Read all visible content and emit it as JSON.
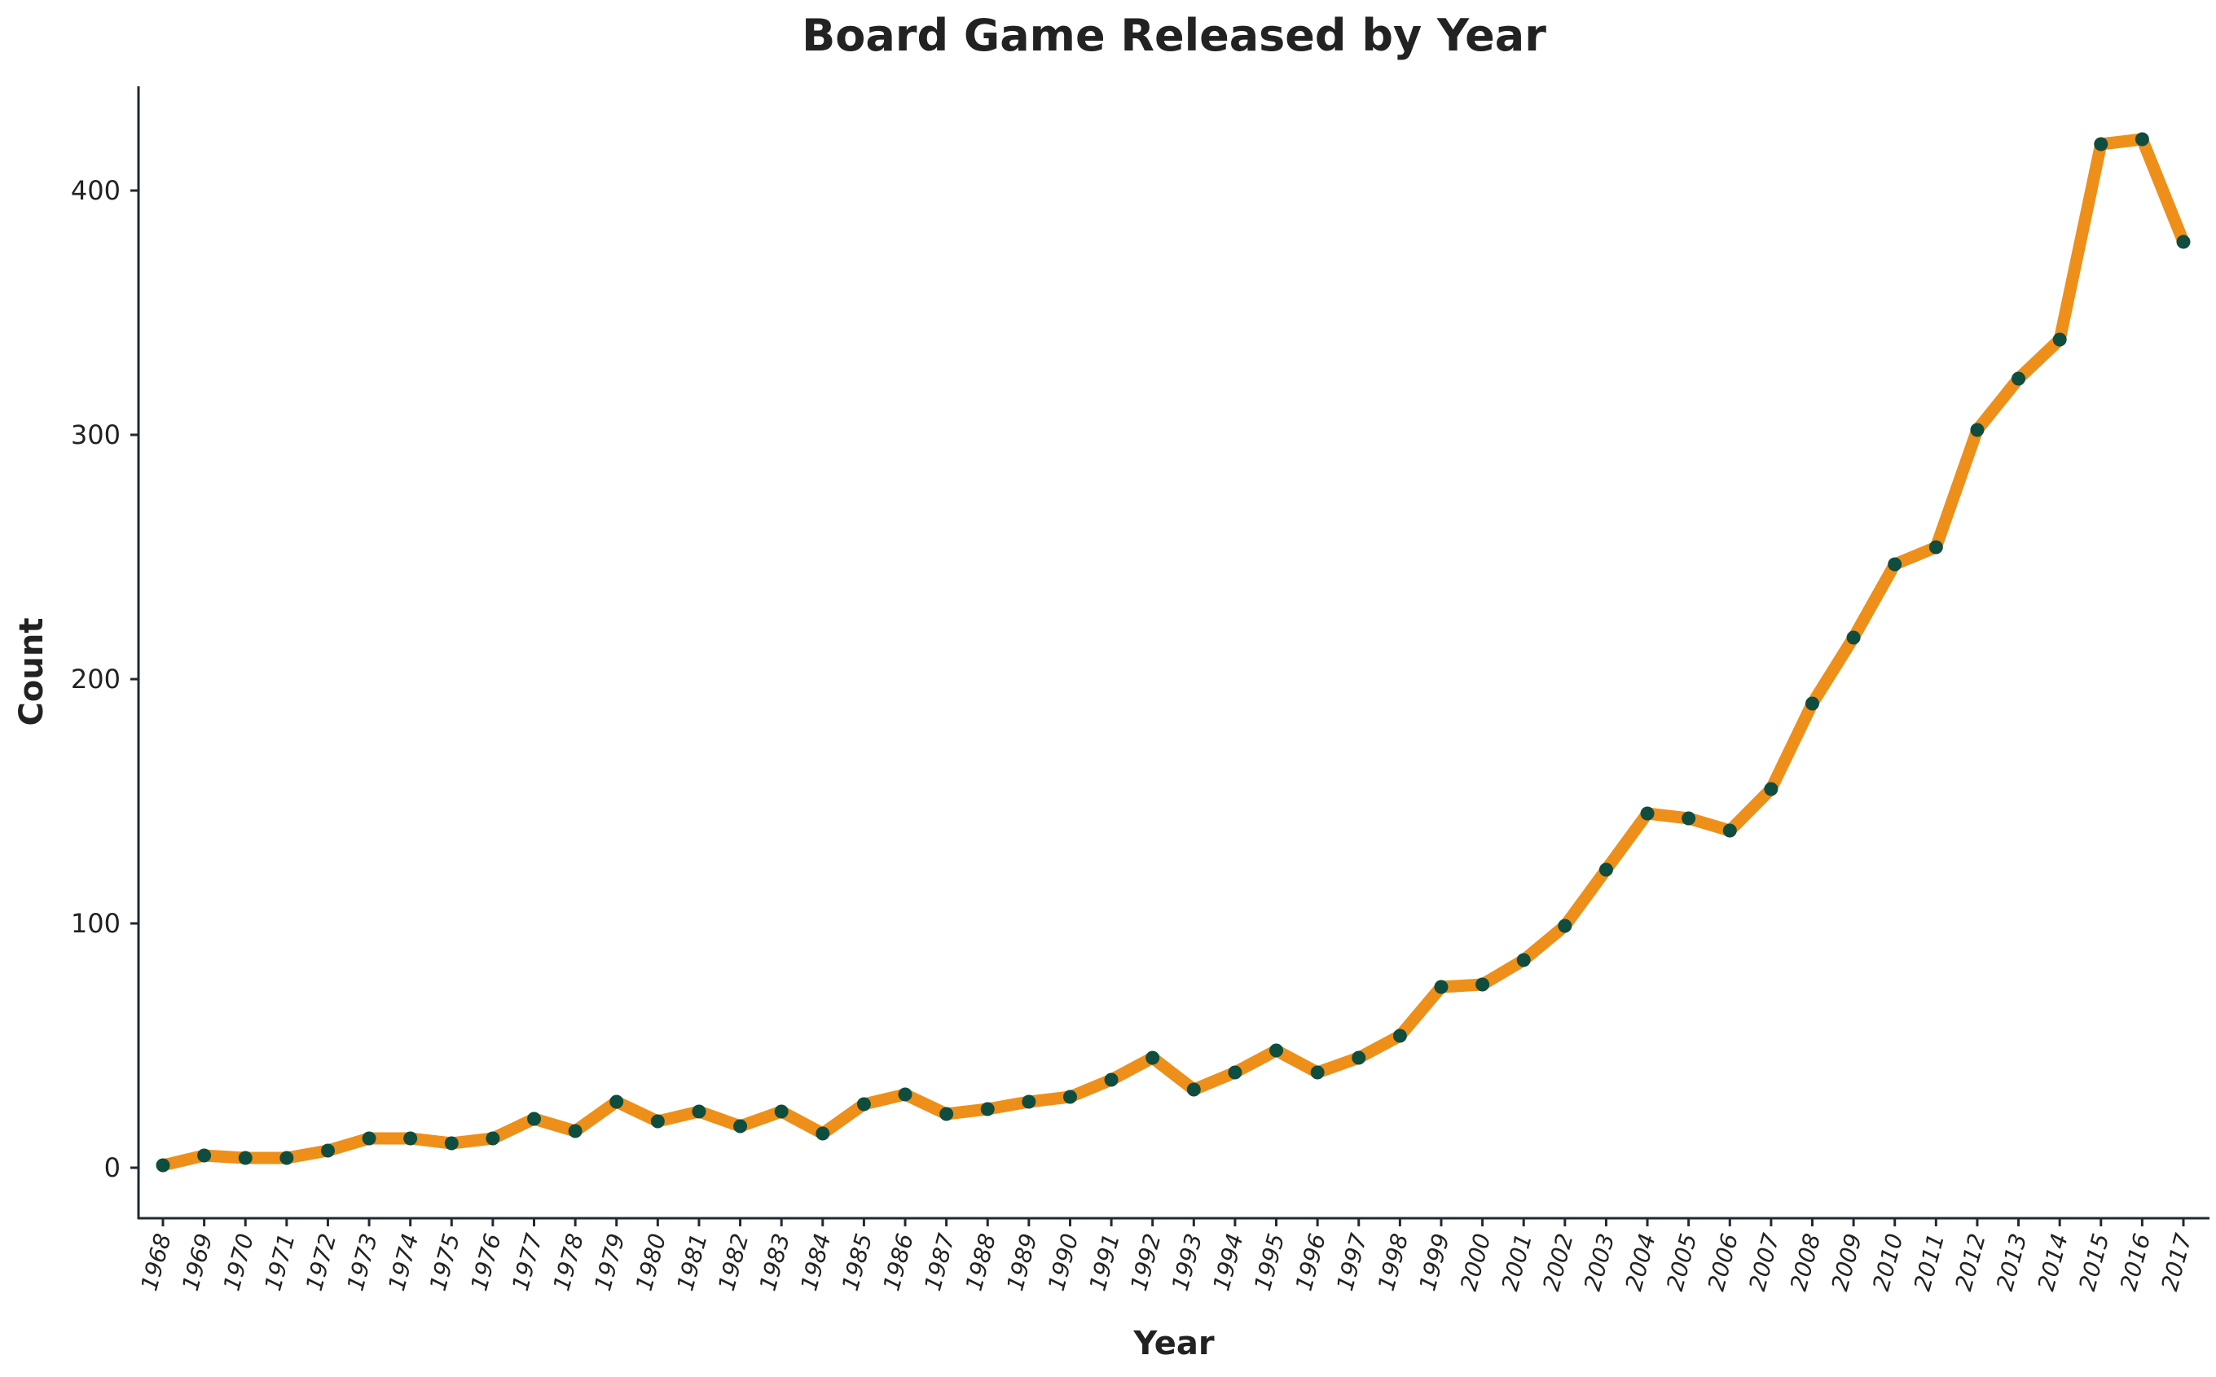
{
  "chart_data": {
    "type": "line",
    "title": "Board Game Released by Year",
    "xlabel": "Year",
    "ylabel": "Count",
    "ylim": [
      -20,
      443
    ],
    "yticks": [
      0,
      100,
      200,
      300,
      400
    ],
    "grid": false,
    "legend": "none",
    "colors": {
      "line": "#EE8F1A",
      "marker": "#0F4D3F",
      "axis": "#1E2A33",
      "text": "#222222"
    },
    "x": [
      "1968",
      "1969",
      "1970",
      "1971",
      "1972",
      "1973",
      "1974",
      "1975",
      "1976",
      "1977",
      "1978",
      "1979",
      "1980",
      "1981",
      "1982",
      "1983",
      "1984",
      "1985",
      "1986",
      "1987",
      "1988",
      "1989",
      "1990",
      "1991",
      "1992",
      "1993",
      "1994",
      "1995",
      "1996",
      "1997",
      "1998",
      "1999",
      "2000",
      "2001",
      "2002",
      "2003",
      "2004",
      "2005",
      "2006",
      "2007",
      "2008",
      "2009",
      "2010",
      "2011",
      "2012",
      "2013",
      "2014",
      "2015",
      "2016",
      "2017"
    ],
    "series": [
      {
        "values": [
          1,
          5,
          4,
          4,
          7,
          12,
          12,
          10,
          12,
          20,
          15,
          27,
          19,
          23,
          17,
          23,
          14,
          26,
          30,
          22,
          24,
          27,
          29,
          36,
          45,
          32,
          39,
          48,
          39,
          45,
          54,
          74,
          75,
          85,
          99,
          122,
          145,
          143,
          138,
          155,
          190,
          217,
          247,
          254,
          302,
          323,
          339,
          419,
          421,
          379
        ]
      }
    ]
  }
}
